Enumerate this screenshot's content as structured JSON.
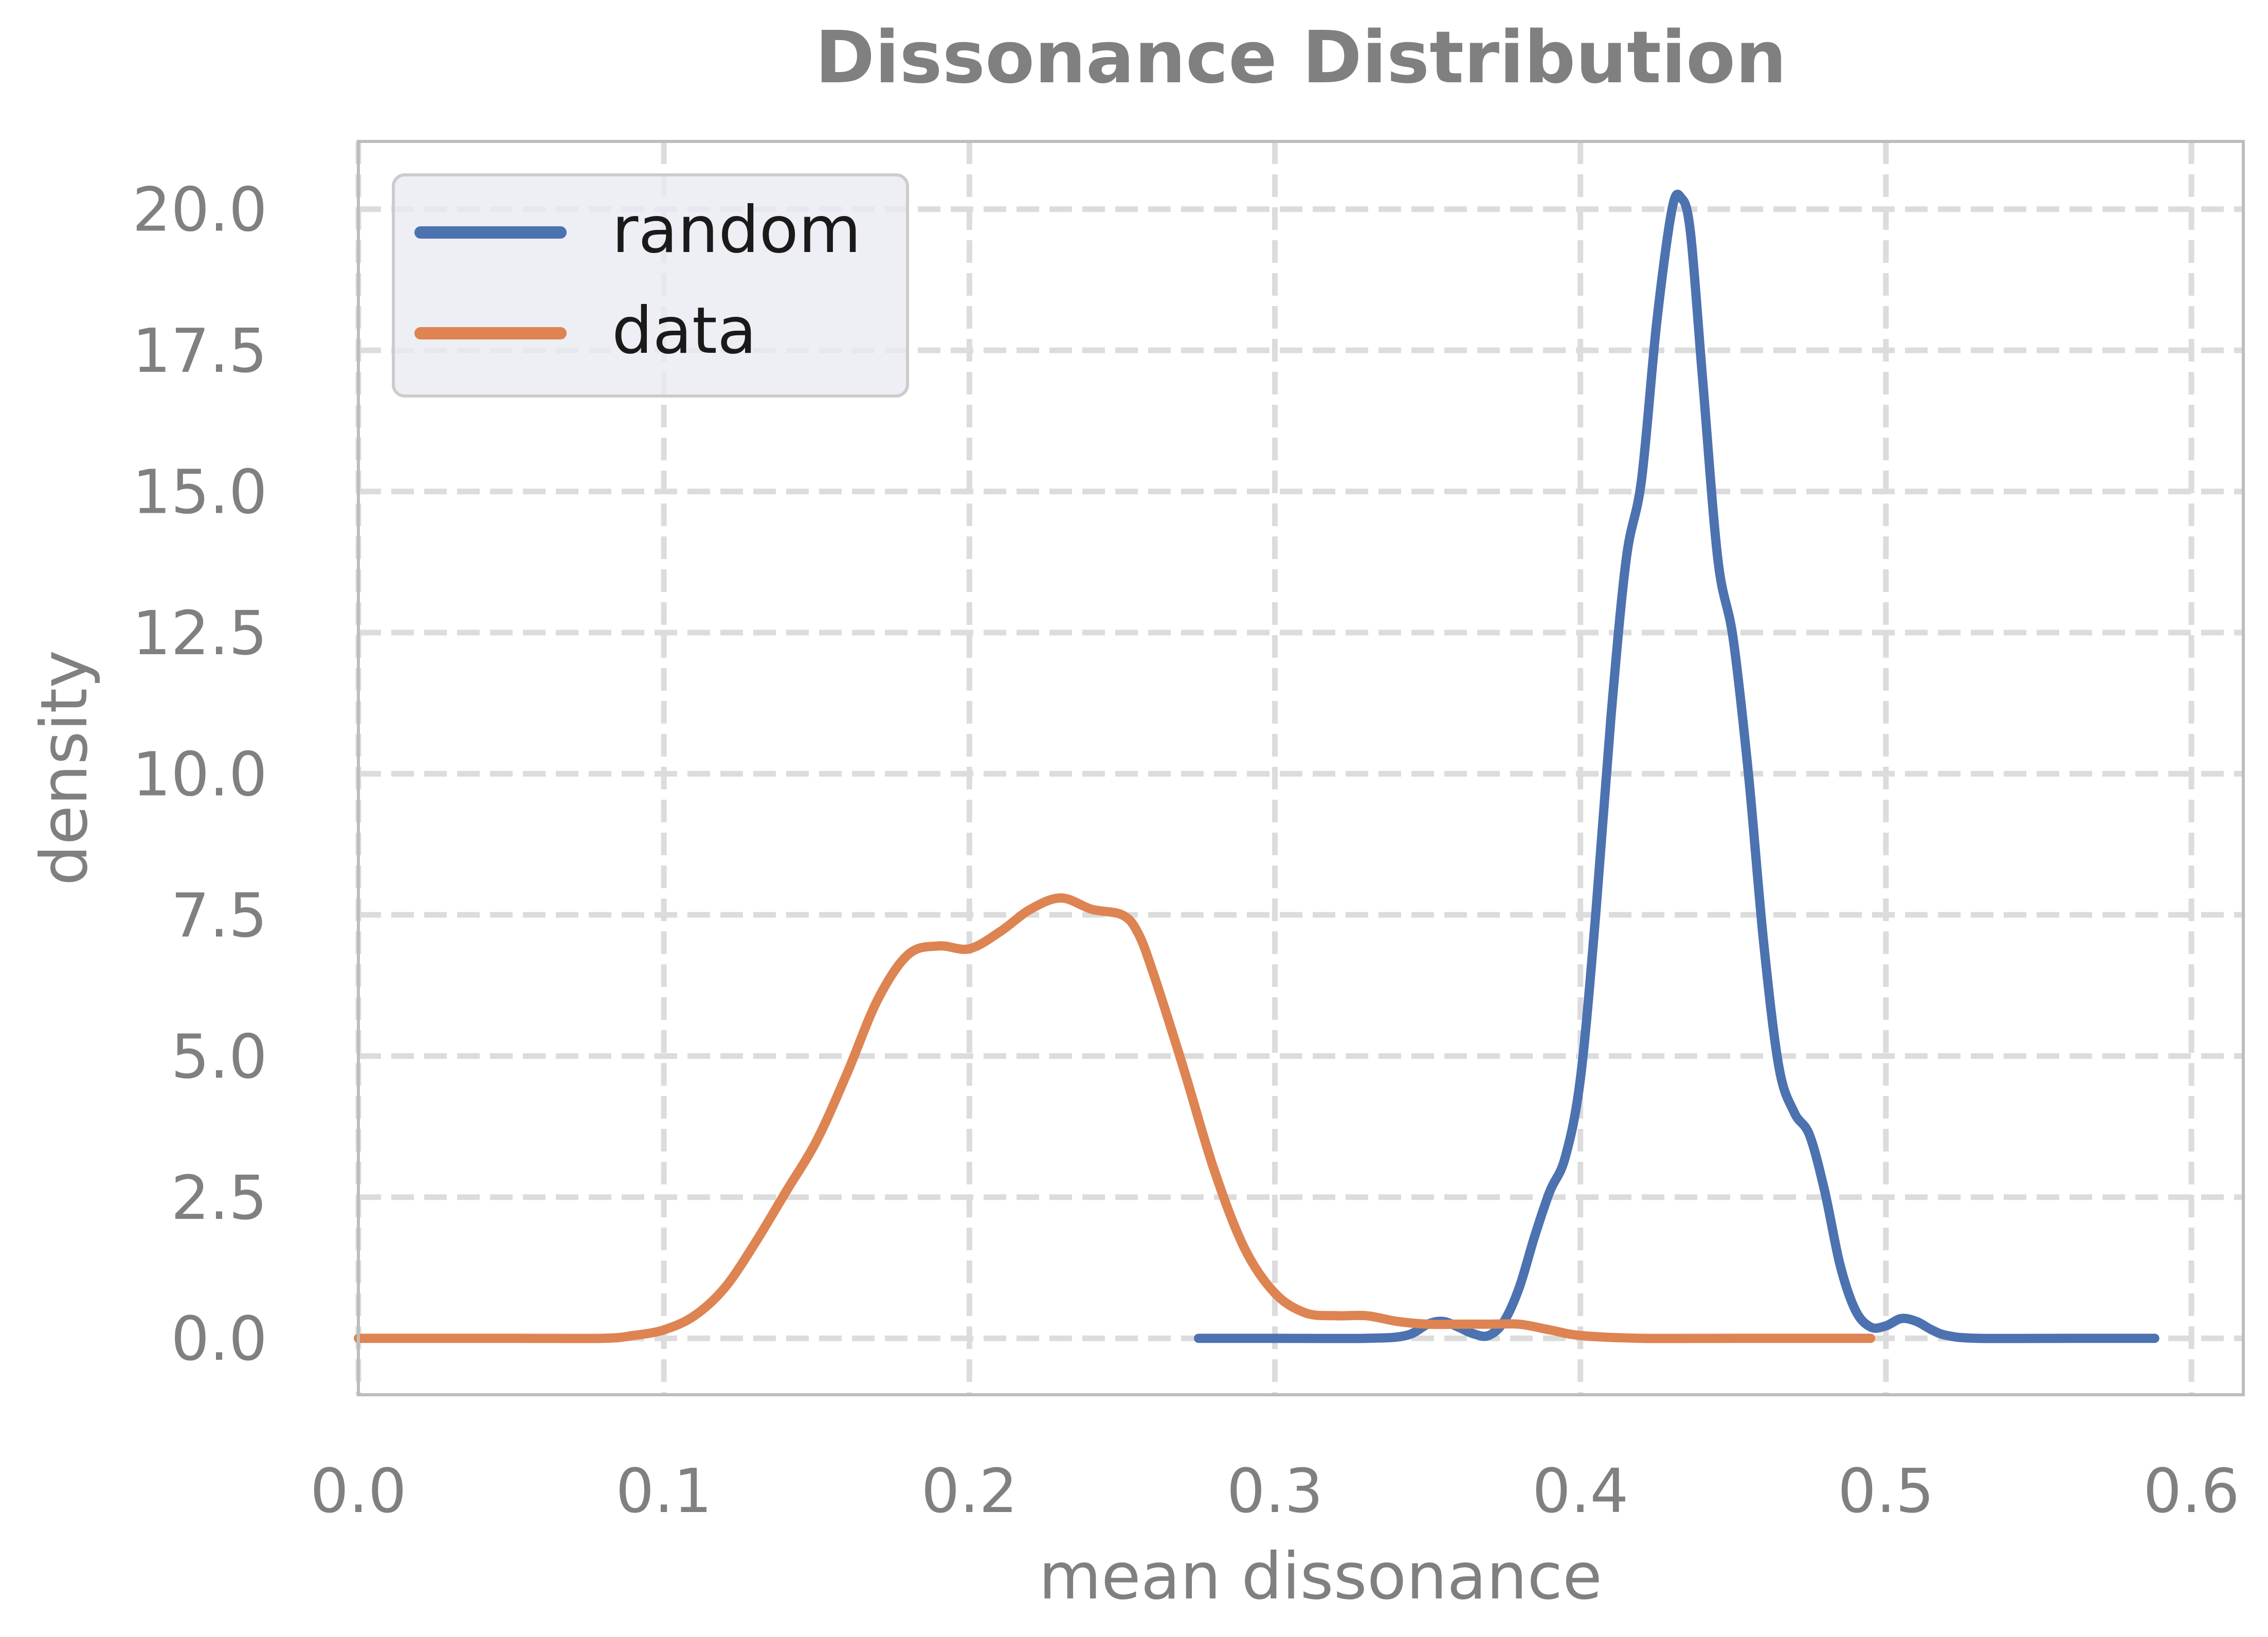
{
  "chart_data": {
    "type": "line",
    "title": "Dissonance Distribution",
    "xlabel": "mean dissonance",
    "ylabel": "density",
    "xlim": [
      0.0,
      0.617
    ],
    "ylim": [
      -1.0,
      21.2
    ],
    "x_ticks": [
      0.0,
      0.1,
      0.2,
      0.3,
      0.4,
      0.5,
      0.6
    ],
    "x_tick_labels": [
      "0.0",
      "0.1",
      "0.2",
      "0.3",
      "0.4",
      "0.5",
      "0.6"
    ],
    "y_ticks": [
      0.0,
      2.5,
      5.0,
      7.5,
      10.0,
      12.5,
      15.0,
      17.5,
      20.0
    ],
    "y_tick_labels": [
      "0.0",
      "2.5",
      "5.0",
      "7.5",
      "10.0",
      "12.5",
      "15.0",
      "17.5",
      "20.0"
    ],
    "grid": true,
    "legend_position": "top-left",
    "series": [
      {
        "name": "random",
        "color": "#4c72b0",
        "points": [
          [
            0.275,
            0.0
          ],
          [
            0.3,
            0.0
          ],
          [
            0.33,
            0.0
          ],
          [
            0.343,
            0.05
          ],
          [
            0.35,
            0.25
          ],
          [
            0.355,
            0.3
          ],
          [
            0.36,
            0.2
          ],
          [
            0.365,
            0.08
          ],
          [
            0.37,
            0.05
          ],
          [
            0.375,
            0.3
          ],
          [
            0.38,
            0.9
          ],
          [
            0.385,
            1.8
          ],
          [
            0.39,
            2.6
          ],
          [
            0.395,
            3.2
          ],
          [
            0.4,
            4.6
          ],
          [
            0.405,
            7.5
          ],
          [
            0.41,
            11.0
          ],
          [
            0.415,
            13.8
          ],
          [
            0.42,
            15.2
          ],
          [
            0.425,
            18.0
          ],
          [
            0.43,
            20.0
          ],
          [
            0.433,
            20.2
          ],
          [
            0.436,
            19.6
          ],
          [
            0.44,
            17.0
          ],
          [
            0.445,
            13.8
          ],
          [
            0.45,
            12.4
          ],
          [
            0.455,
            10.0
          ],
          [
            0.46,
            7.0
          ],
          [
            0.465,
            4.8
          ],
          [
            0.47,
            4.0
          ],
          [
            0.475,
            3.6
          ],
          [
            0.48,
            2.6
          ],
          [
            0.485,
            1.3
          ],
          [
            0.49,
            0.5
          ],
          [
            0.495,
            0.2
          ],
          [
            0.5,
            0.22
          ],
          [
            0.505,
            0.35
          ],
          [
            0.51,
            0.3
          ],
          [
            0.515,
            0.15
          ],
          [
            0.52,
            0.05
          ],
          [
            0.53,
            0.0
          ],
          [
            0.56,
            0.0
          ],
          [
            0.588,
            0.0
          ]
        ]
      },
      {
        "name": "data",
        "color": "#dd8452",
        "points": [
          [
            0.0,
            0.0
          ],
          [
            0.05,
            0.0
          ],
          [
            0.08,
            0.0
          ],
          [
            0.09,
            0.05
          ],
          [
            0.1,
            0.15
          ],
          [
            0.11,
            0.4
          ],
          [
            0.12,
            0.9
          ],
          [
            0.13,
            1.7
          ],
          [
            0.14,
            2.6
          ],
          [
            0.15,
            3.5
          ],
          [
            0.16,
            4.7
          ],
          [
            0.17,
            6.0
          ],
          [
            0.18,
            6.8
          ],
          [
            0.19,
            6.95
          ],
          [
            0.2,
            6.9
          ],
          [
            0.21,
            7.2
          ],
          [
            0.22,
            7.6
          ],
          [
            0.23,
            7.8
          ],
          [
            0.24,
            7.6
          ],
          [
            0.25,
            7.5
          ],
          [
            0.255,
            7.2
          ],
          [
            0.26,
            6.5
          ],
          [
            0.27,
            4.8
          ],
          [
            0.28,
            3.0
          ],
          [
            0.29,
            1.6
          ],
          [
            0.3,
            0.8
          ],
          [
            0.31,
            0.45
          ],
          [
            0.32,
            0.4
          ],
          [
            0.33,
            0.4
          ],
          [
            0.34,
            0.3
          ],
          [
            0.35,
            0.25
          ],
          [
            0.36,
            0.25
          ],
          [
            0.37,
            0.25
          ],
          [
            0.38,
            0.25
          ],
          [
            0.39,
            0.15
          ],
          [
            0.4,
            0.05
          ],
          [
            0.42,
            0.0
          ],
          [
            0.45,
            0.0
          ],
          [
            0.495,
            0.0
          ]
        ]
      }
    ]
  }
}
